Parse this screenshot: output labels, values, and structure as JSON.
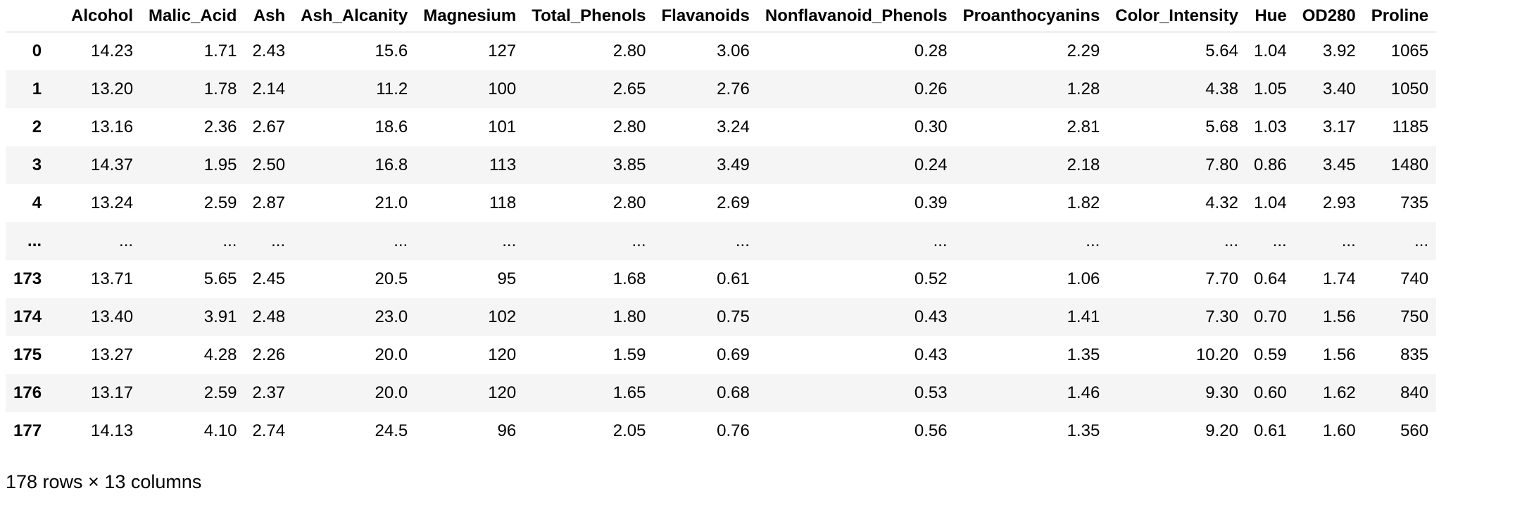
{
  "table": {
    "index_header": "",
    "columns": [
      "Alcohol",
      "Malic_Acid",
      "Ash",
      "Ash_Alcanity",
      "Magnesium",
      "Total_Phenols",
      "Flavanoids",
      "Nonflavanoid_Phenols",
      "Proanthocyanins",
      "Color_Intensity",
      "Hue",
      "OD280",
      "Proline"
    ],
    "rows": [
      {
        "index": "0",
        "cells": [
          "14.23",
          "1.71",
          "2.43",
          "15.6",
          "127",
          "2.80",
          "3.06",
          "0.28",
          "2.29",
          "5.64",
          "1.04",
          "3.92",
          "1065"
        ]
      },
      {
        "index": "1",
        "cells": [
          "13.20",
          "1.78",
          "2.14",
          "11.2",
          "100",
          "2.65",
          "2.76",
          "0.26",
          "1.28",
          "4.38",
          "1.05",
          "3.40",
          "1050"
        ]
      },
      {
        "index": "2",
        "cells": [
          "13.16",
          "2.36",
          "2.67",
          "18.6",
          "101",
          "2.80",
          "3.24",
          "0.30",
          "2.81",
          "5.68",
          "1.03",
          "3.17",
          "1185"
        ]
      },
      {
        "index": "3",
        "cells": [
          "14.37",
          "1.95",
          "2.50",
          "16.8",
          "113",
          "3.85",
          "3.49",
          "0.24",
          "2.18",
          "7.80",
          "0.86",
          "3.45",
          "1480"
        ]
      },
      {
        "index": "4",
        "cells": [
          "13.24",
          "2.59",
          "2.87",
          "21.0",
          "118",
          "2.80",
          "2.69",
          "0.39",
          "1.82",
          "4.32",
          "1.04",
          "2.93",
          "735"
        ]
      },
      {
        "index": "...",
        "cells": [
          "...",
          "...",
          "...",
          "...",
          "...",
          "...",
          "...",
          "...",
          "...",
          "...",
          "...",
          "...",
          "..."
        ]
      },
      {
        "index": "173",
        "cells": [
          "13.71",
          "5.65",
          "2.45",
          "20.5",
          "95",
          "1.68",
          "0.61",
          "0.52",
          "1.06",
          "7.70",
          "0.64",
          "1.74",
          "740"
        ]
      },
      {
        "index": "174",
        "cells": [
          "13.40",
          "3.91",
          "2.48",
          "23.0",
          "102",
          "1.80",
          "0.75",
          "0.43",
          "1.41",
          "7.30",
          "0.70",
          "1.56",
          "750"
        ]
      },
      {
        "index": "175",
        "cells": [
          "13.27",
          "4.28",
          "2.26",
          "20.0",
          "120",
          "1.59",
          "0.69",
          "0.43",
          "1.35",
          "10.20",
          "0.59",
          "1.56",
          "835"
        ]
      },
      {
        "index": "176",
        "cells": [
          "13.17",
          "2.59",
          "2.37",
          "20.0",
          "120",
          "1.65",
          "0.68",
          "0.53",
          "1.46",
          "9.30",
          "0.60",
          "1.62",
          "840"
        ]
      },
      {
        "index": "177",
        "cells": [
          "14.13",
          "4.10",
          "2.74",
          "24.5",
          "96",
          "2.05",
          "0.76",
          "0.56",
          "1.35",
          "9.20",
          "0.61",
          "1.60",
          "560"
        ]
      }
    ]
  },
  "summary": "178 rows × 13 columns"
}
